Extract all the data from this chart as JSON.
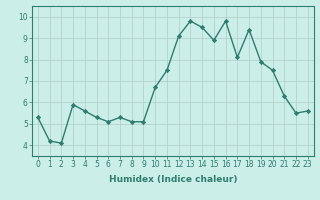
{
  "x": [
    0,
    1,
    2,
    3,
    4,
    5,
    6,
    7,
    8,
    9,
    10,
    11,
    12,
    13,
    14,
    15,
    16,
    17,
    18,
    19,
    20,
    21,
    22,
    23
  ],
  "y": [
    5.3,
    4.2,
    4.1,
    5.9,
    5.6,
    5.3,
    5.1,
    5.3,
    5.1,
    5.1,
    6.7,
    7.5,
    9.1,
    9.8,
    9.5,
    8.9,
    9.8,
    8.1,
    9.4,
    7.9,
    7.5,
    6.3,
    5.5,
    5.6
  ],
  "line_color": "#2e7d6e",
  "marker": "D",
  "marker_size": 2.2,
  "line_width": 1.0,
  "bg_color": "#cceee8",
  "grid_color": "#b0ccc8",
  "xlabel": "Humidex (Indice chaleur)",
  "xlim": [
    -0.5,
    23.5
  ],
  "ylim": [
    3.5,
    10.5
  ],
  "yticks": [
    4,
    5,
    6,
    7,
    8,
    9,
    10
  ],
  "xticks": [
    0,
    1,
    2,
    3,
    4,
    5,
    6,
    7,
    8,
    9,
    10,
    11,
    12,
    13,
    14,
    15,
    16,
    17,
    18,
    19,
    20,
    21,
    22,
    23
  ],
  "tick_fontsize": 5.5,
  "xlabel_fontsize": 6.5
}
